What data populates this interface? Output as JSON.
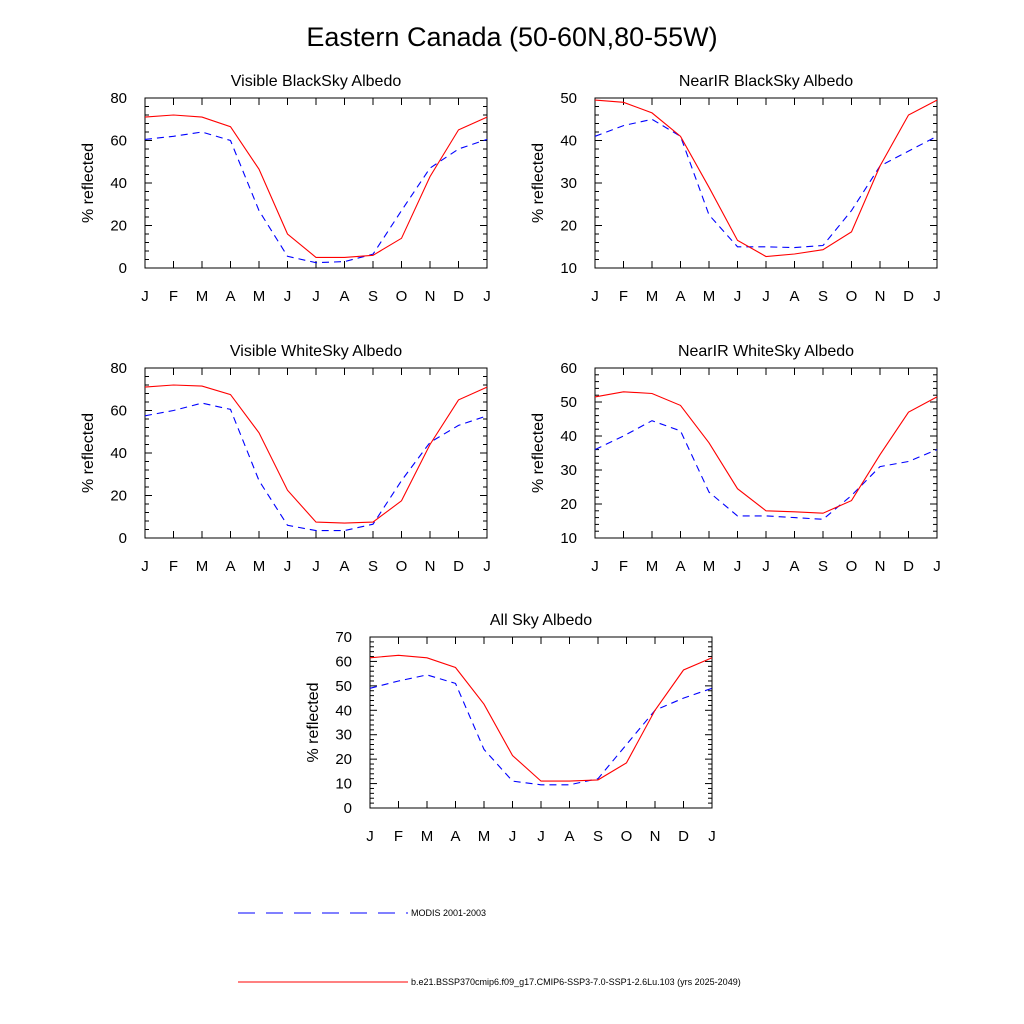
{
  "page": {
    "title": "Eastern Canada (50-60N,80-55W)"
  },
  "colors": {
    "model": "#ff0000",
    "obs": "#0000ff"
  },
  "chart_data": [
    {
      "type": "line",
      "title": "Visible BlackSky Albedo",
      "ylabel": "% reflected",
      "ylim": [
        0,
        80
      ],
      "yticks": [
        0,
        20,
        40,
        60,
        80
      ],
      "categories": [
        "J",
        "F",
        "M",
        "A",
        "M",
        "J",
        "J",
        "A",
        "S",
        "O",
        "N",
        "D",
        "J"
      ],
      "series": [
        {
          "name": "MODIS 2001-2003",
          "values": [
            60.5,
            62,
            64,
            60,
            27,
            5.5,
            2.5,
            3,
            6.5,
            27,
            47,
            56,
            60.5
          ]
        },
        {
          "name": "b.e21.BSSP370cmip6.f09_g17.CMIP6-SSP3-7.0-SSP1-2.6Lu.103 (yrs 2025-2049)",
          "values": [
            71,
            72,
            71,
            66.5,
            46.5,
            16,
            5,
            5,
            6,
            14,
            43,
            65,
            71
          ]
        }
      ]
    },
    {
      "type": "line",
      "title": "NearIR BlackSky Albedo",
      "ylabel": "% reflected",
      "ylim": [
        10,
        50
      ],
      "yticks": [
        10,
        20,
        30,
        40,
        50
      ],
      "categories": [
        "J",
        "F",
        "M",
        "A",
        "M",
        "J",
        "J",
        "A",
        "S",
        "O",
        "N",
        "D",
        "J"
      ],
      "series": [
        {
          "name": "MODIS 2001-2003",
          "values": [
            41,
            43.5,
            45,
            41,
            22.5,
            15,
            15,
            14.8,
            15.3,
            23.5,
            34,
            37.5,
            41
          ]
        },
        {
          "name": "b.e21.BSSP370cmip6.f09_g17.CMIP6-SSP3-7.0-SSP1-2.6Lu.103 (yrs 2025-2049)",
          "values": [
            49.5,
            49,
            46.5,
            41,
            29,
            16.5,
            12.7,
            13.3,
            14.3,
            18.5,
            34,
            46,
            49.5
          ]
        }
      ]
    },
    {
      "type": "line",
      "title": "Visible WhiteSky Albedo",
      "ylabel": "% reflected",
      "ylim": [
        0,
        80
      ],
      "yticks": [
        0,
        20,
        40,
        60,
        80
      ],
      "categories": [
        "J",
        "F",
        "M",
        "A",
        "M",
        "J",
        "J",
        "A",
        "S",
        "O",
        "N",
        "D",
        "J"
      ],
      "series": [
        {
          "name": "MODIS 2001-2003",
          "values": [
            57.5,
            60,
            63.5,
            60.5,
            27,
            6,
            3.5,
            3.5,
            6.5,
            27,
            45,
            53,
            57.5
          ]
        },
        {
          "name": "b.e21.BSSP370cmip6.f09_g17.CMIP6-SSP3-7.0-SSP1-2.6Lu.103 (yrs 2025-2049)",
          "values": [
            71,
            72,
            71.5,
            67.5,
            49.5,
            22.5,
            7.5,
            7,
            7.5,
            17.5,
            44,
            65,
            71
          ]
        }
      ]
    },
    {
      "type": "line",
      "title": "NearIR WhiteSky Albedo",
      "ylabel": "% reflected",
      "ylim": [
        10,
        60
      ],
      "yticks": [
        10,
        20,
        30,
        40,
        50,
        60
      ],
      "categories": [
        "J",
        "F",
        "M",
        "A",
        "M",
        "J",
        "J",
        "A",
        "S",
        "O",
        "N",
        "D",
        "J"
      ],
      "series": [
        {
          "name": "MODIS 2001-2003",
          "values": [
            36,
            40,
            44.5,
            41.5,
            23.5,
            16.5,
            16.5,
            16,
            15.5,
            22.5,
            31,
            32.5,
            36
          ]
        },
        {
          "name": "b.e21.BSSP370cmip6.f09_g17.CMIP6-SSP3-7.0-SSP1-2.6Lu.103 (yrs 2025-2049)",
          "values": [
            51.5,
            53,
            52.5,
            49,
            38,
            24.5,
            18,
            17.7,
            17.3,
            21,
            34.5,
            47,
            51.5
          ]
        }
      ]
    },
    {
      "type": "line",
      "title": "All Sky Albedo",
      "ylabel": "% reflected",
      "ylim": [
        0,
        70
      ],
      "yticks": [
        0,
        10,
        20,
        30,
        40,
        50,
        60,
        70
      ],
      "categories": [
        "J",
        "F",
        "M",
        "A",
        "M",
        "J",
        "J",
        "A",
        "S",
        "O",
        "N",
        "D",
        "J"
      ],
      "series": [
        {
          "name": "MODIS 2001-2003",
          "values": [
            49,
            52,
            54.5,
            51,
            24,
            11,
            9.5,
            9.5,
            12,
            26,
            40,
            45,
            49
          ]
        },
        {
          "name": "b.e21.BSSP370cmip6.f09_g17.CMIP6-SSP3-7.0-SSP1-2.6Lu.103 (yrs 2025-2049)",
          "values": [
            61.5,
            62.5,
            61.5,
            57.5,
            42.5,
            21.5,
            11,
            11,
            11.5,
            18.5,
            40,
            56.5,
            61.5
          ]
        }
      ]
    }
  ],
  "legend": {
    "obs_label": "MODIS 2001-2003",
    "model_label": "b.e21.BSSP370cmip6.f09_g17.CMIP6-SSP3-7.0-SSP1-2.6Lu.103 (yrs 2025-2049)"
  }
}
